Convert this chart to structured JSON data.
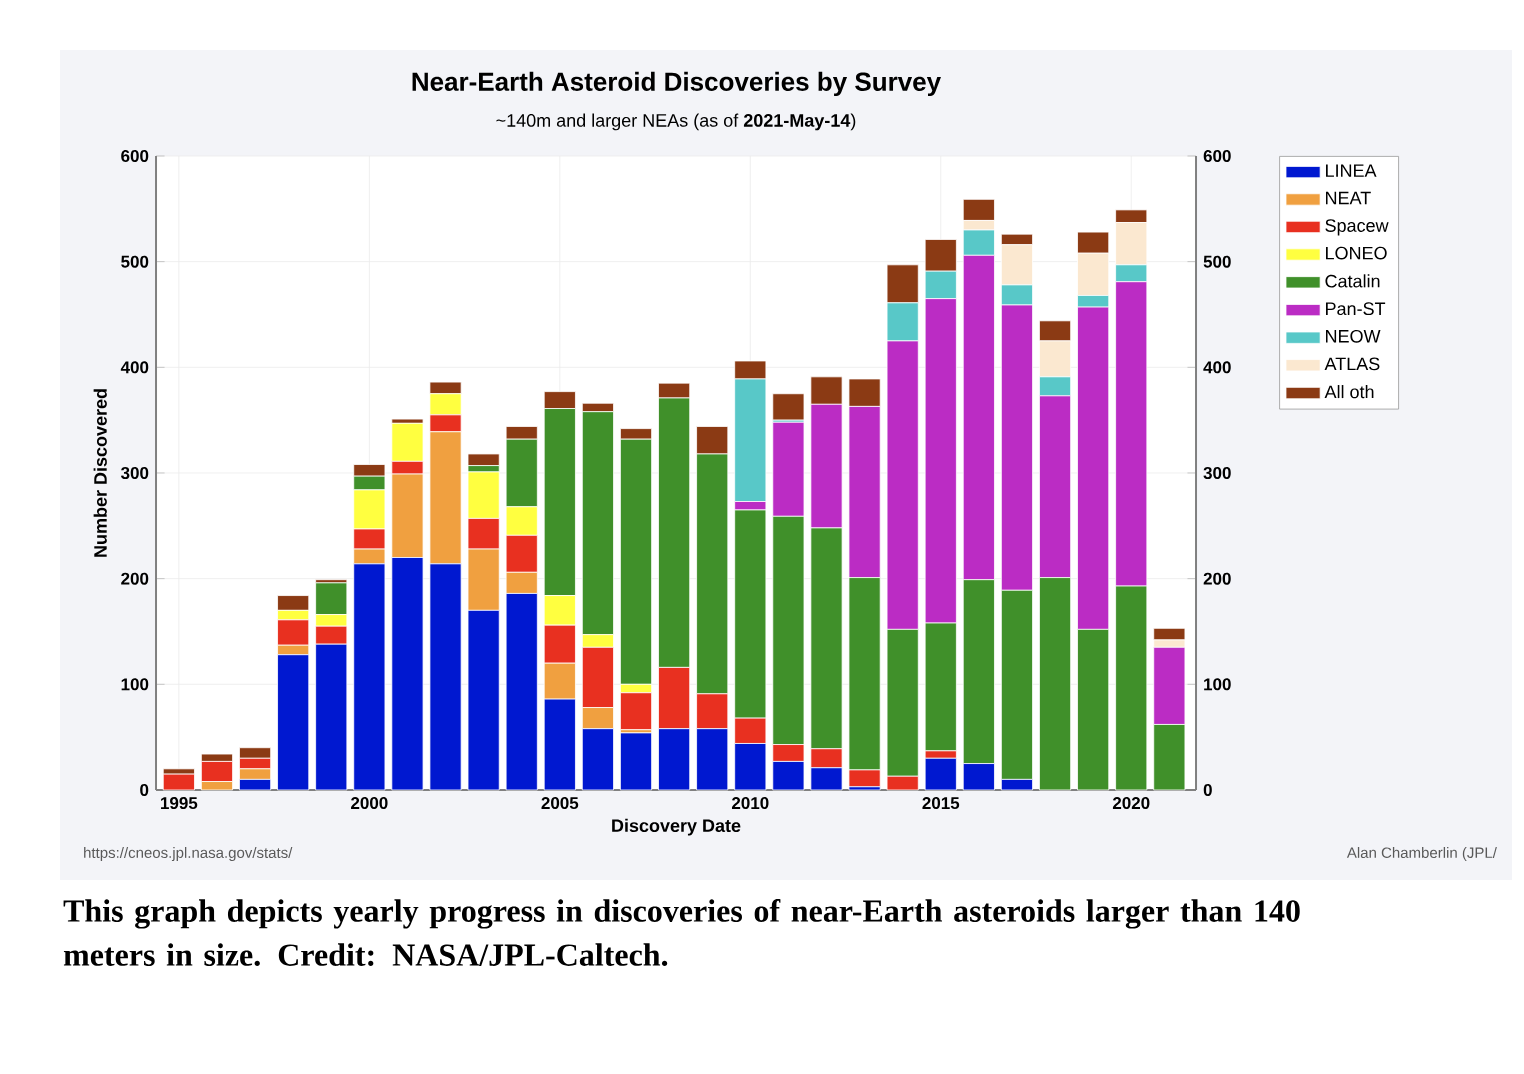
{
  "chart_data": {
    "type": "bar",
    "stacked": true,
    "title": "Near-Earth Asteroid Discoveries by Survey",
    "subtitle": "~140m and larger NEAs (as of **2021-May-14**)",
    "xlabel": "Discovery Date",
    "ylabel": "Number Discovered",
    "x": [
      1995,
      1996,
      1997,
      1998,
      1999,
      2000,
      2001,
      2002,
      2003,
      2004,
      2005,
      2006,
      2007,
      2008,
      2009,
      2010,
      2011,
      2012,
      2013,
      2014,
      2015,
      2016,
      2017,
      2018,
      2019,
      2020,
      2021
    ],
    "xlim": [
      1994.4,
      2021.7
    ],
    "xticks": [
      1995,
      2000,
      2005,
      2010,
      2015,
      2020
    ],
    "ylim": [
      0,
      600
    ],
    "yticks": [
      0,
      100,
      200,
      300,
      400,
      500,
      600
    ],
    "y2lim": [
      0,
      600
    ],
    "y2ticks": [
      0,
      100,
      200,
      300,
      400,
      500,
      600
    ],
    "grid": true,
    "legend": "right",
    "series": [
      {
        "name": "LINEA",
        "color": "#0018d0",
        "values": [
          0,
          0,
          10,
          128,
          138,
          214,
          220,
          214,
          170,
          186,
          86,
          58,
          54,
          58,
          58,
          44,
          27,
          21,
          3,
          0,
          30,
          25,
          10,
          0,
          0,
          0,
          0
        ]
      },
      {
        "name": "NEAT",
        "color": "#f0a040",
        "values": [
          0,
          8,
          10,
          9,
          0,
          14,
          79,
          125,
          58,
          20,
          34,
          20,
          3,
          0,
          0,
          0,
          0,
          0,
          0,
          0,
          0,
          0,
          0,
          0,
          0,
          0,
          0
        ]
      },
      {
        "name": "Spacew",
        "color": "#e83020",
        "values": [
          15,
          19,
          10,
          24,
          17,
          19,
          12,
          16,
          29,
          35,
          36,
          57,
          35,
          58,
          33,
          24,
          16,
          18,
          16,
          13,
          7,
          0,
          0,
          0,
          0,
          0,
          0
        ]
      },
      {
        "name": "LONEO",
        "color": "#ffff40",
        "values": [
          0,
          0,
          0,
          9,
          11,
          37,
          36,
          20,
          44,
          27,
          28,
          12,
          8,
          0,
          0,
          0,
          0,
          0,
          0,
          0,
          0,
          0,
          0,
          0,
          0,
          0,
          0
        ]
      },
      {
        "name": "Catalin",
        "color": "#40902a",
        "values": [
          0,
          0,
          0,
          0,
          30,
          13,
          0,
          0,
          6,
          64,
          177,
          211,
          232,
          255,
          227,
          197,
          216,
          209,
          182,
          139,
          121,
          174,
          179,
          201,
          152,
          193,
          62
        ]
      },
      {
        "name": "Pan-ST",
        "color": "#bb2cc4",
        "values": [
          0,
          0,
          0,
          0,
          0,
          0,
          0,
          0,
          0,
          0,
          0,
          0,
          0,
          0,
          0,
          8,
          89,
          117,
          162,
          273,
          307,
          307,
          270,
          172,
          305,
          288,
          73
        ]
      },
      {
        "name": "NEOW",
        "color": "#58c8c8",
        "values": [
          0,
          0,
          0,
          0,
          0,
          0,
          0,
          0,
          0,
          0,
          0,
          0,
          0,
          0,
          0,
          116,
          2,
          0,
          0,
          36,
          26,
          24,
          19,
          18,
          11,
          16,
          null
        ]
      },
      {
        "name": "ATLAS",
        "color": "#fbe8d0",
        "values": [
          0,
          0,
          0,
          0,
          0,
          0,
          0,
          0,
          0,
          0,
          0,
          0,
          0,
          0,
          0,
          0,
          0,
          0,
          0,
          0,
          0,
          9,
          38,
          34,
          40,
          40,
          7
        ]
      },
      {
        "name": "All oth",
        "color": "#8b3a14",
        "values": [
          5,
          7,
          10,
          14,
          3,
          11,
          4,
          11,
          11,
          12,
          16,
          8,
          10,
          14,
          26,
          17,
          25,
          26,
          26,
          36,
          30,
          20,
          10,
          19,
          20,
          12,
          11
        ]
      }
    ],
    "annotations": [
      "https://cneos.jpl.nasa.gov/stats/",
      "Alan Chamberlin (JPL/",
      "This graph depicts yearly progress in discoveries of near-Earth asteroids larger than 140 meters in size. Credit: NASA/JPL-Caltech."
    ]
  }
}
